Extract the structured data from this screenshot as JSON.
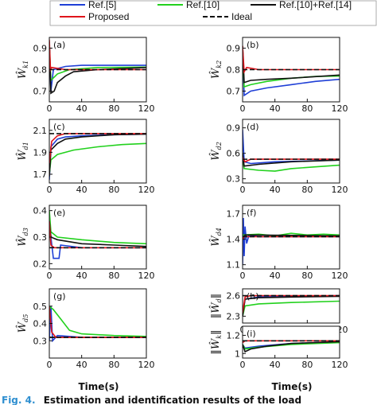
{
  "chart_data": {
    "type": "line",
    "legend": {
      "placement": "top",
      "entries": [
        {
          "key": "ref5",
          "label": "Ref.[5]",
          "color": "#1f3fd6",
          "dash": "solid"
        },
        {
          "key": "ref10",
          "label": "Ref.[10]",
          "color": "#22d11d",
          "dash": "solid"
        },
        {
          "key": "ref1014",
          "label": "Ref.[10]+Ref.[14]",
          "color": "#111111",
          "dash": "solid"
        },
        {
          "key": "proposed",
          "label": "Proposed",
          "color": "#e0141b",
          "dash": "solid"
        },
        {
          "key": "ideal",
          "label": "Ideal",
          "color": "#111111",
          "dash": "dashed"
        }
      ]
    },
    "xlabel": "Time(s)",
    "x_ticks": [
      "0",
      "40",
      "80",
      "120"
    ],
    "xlim": [
      0,
      120
    ],
    "panels": [
      {
        "tag": "(a)",
        "ylabel_main": "Ŵ",
        "ylabel_sub": "k1",
        "ylim": [
          0.65,
          0.95
        ],
        "yticks": [
          0.7,
          0.8,
          0.9
        ],
        "ytick_labels": [
          "0.7",
          "0.8",
          "0.9"
        ],
        "ideal": 0.8,
        "series": {
          "ref5": [
            [
              0,
              0.93
            ],
            [
              2,
              0.7
            ],
            [
              5,
              0.8
            ],
            [
              20,
              0.815
            ],
            [
              40,
              0.82
            ],
            [
              80,
              0.82
            ],
            [
              120,
              0.82
            ]
          ],
          "ref10": [
            [
              0,
              0.92
            ],
            [
              2,
              0.75
            ],
            [
              10,
              0.78
            ],
            [
              25,
              0.8
            ],
            [
              60,
              0.81
            ],
            [
              120,
              0.812
            ]
          ],
          "ref1014": [
            [
              0,
              0.93
            ],
            [
              2,
              0.69
            ],
            [
              6,
              0.7
            ],
            [
              10,
              0.74
            ],
            [
              20,
              0.77
            ],
            [
              30,
              0.79
            ],
            [
              60,
              0.8
            ],
            [
              120,
              0.81
            ]
          ],
          "proposed": [
            [
              0,
              0.94
            ],
            [
              1.5,
              0.8
            ],
            [
              3,
              0.81
            ],
            [
              20,
              0.8
            ],
            [
              120,
              0.8
            ]
          ]
        }
      },
      {
        "tag": "(b)",
        "ylabel_main": "Ŵ",
        "ylabel_sub": "k2",
        "ylim": [
          0.65,
          0.95
        ],
        "yticks": [
          0.7,
          0.8,
          0.9
        ],
        "ytick_labels": [
          "0.7",
          "0.8",
          "0.9"
        ],
        "ideal": 0.8,
        "series": {
          "ref5": [
            [
              0,
              0.9
            ],
            [
              2,
              0.68
            ],
            [
              10,
              0.7
            ],
            [
              30,
              0.715
            ],
            [
              60,
              0.73
            ],
            [
              90,
              0.745
            ],
            [
              120,
              0.755
            ]
          ],
          "ref10": [
            [
              0,
              0.9
            ],
            [
              2,
              0.72
            ],
            [
              10,
              0.73
            ],
            [
              30,
              0.745
            ],
            [
              60,
              0.76
            ],
            [
              90,
              0.768
            ],
            [
              120,
              0.77
            ]
          ],
          "ref1014": [
            [
              0,
              0.91
            ],
            [
              2,
              0.74
            ],
            [
              10,
              0.75
            ],
            [
              30,
              0.755
            ],
            [
              60,
              0.76
            ],
            [
              120,
              0.775
            ]
          ],
          "proposed": [
            [
              0,
              0.91
            ],
            [
              2,
              0.79
            ],
            [
              5,
              0.81
            ],
            [
              20,
              0.8
            ],
            [
              120,
              0.8
            ]
          ]
        }
      },
      {
        "tag": "(c)",
        "ylabel_main": "Ŵ",
        "ylabel_sub": "d1",
        "ylim": [
          1.62,
          2.2
        ],
        "yticks": [
          1.7,
          1.9,
          2.1
        ],
        "ytick_labels": [
          "1.7",
          "1.9",
          "2.1"
        ],
        "ideal": 2.07,
        "series": {
          "ref5": [
            [
              0,
              1.65
            ],
            [
              2,
              1.95
            ],
            [
              10,
              2.02
            ],
            [
              20,
              2.04
            ],
            [
              40,
              2.05
            ],
            [
              80,
              2.06
            ],
            [
              120,
              2.065
            ]
          ],
          "ref10": [
            [
              0,
              1.7
            ],
            [
              2,
              1.83
            ],
            [
              10,
              1.88
            ],
            [
              30,
              1.92
            ],
            [
              60,
              1.95
            ],
            [
              90,
              1.97
            ],
            [
              120,
              1.98
            ]
          ],
          "ref1014": [
            [
              0,
              1.68
            ],
            [
              2,
              1.92
            ],
            [
              10,
              1.98
            ],
            [
              20,
              2.02
            ],
            [
              40,
              2.04
            ],
            [
              80,
              2.06
            ],
            [
              120,
              2.065
            ]
          ],
          "proposed": [
            [
              0,
              1.8
            ],
            [
              3,
              2.0
            ],
            [
              10,
              2.05
            ],
            [
              20,
              2.07
            ],
            [
              120,
              2.07
            ]
          ]
        }
      },
      {
        "tag": "(d)",
        "ylabel_main": "Ŵ",
        "ylabel_sub": "d2",
        "ylim": [
          0.25,
          1.0
        ],
        "yticks": [
          0.3,
          0.6,
          0.9
        ],
        "ytick_labels": [
          "0.3",
          "0.6",
          "0.9"
        ],
        "ideal": 0.53,
        "series": {
          "ref5": [
            [
              0,
              0.88
            ],
            [
              2,
              0.5
            ],
            [
              10,
              0.48
            ],
            [
              40,
              0.5
            ],
            [
              80,
              0.51
            ],
            [
              120,
              0.52
            ]
          ],
          "ref10": [
            [
              0,
              0.55
            ],
            [
              2,
              0.42
            ],
            [
              20,
              0.4
            ],
            [
              40,
              0.39
            ],
            [
              60,
              0.42
            ],
            [
              90,
              0.44
            ],
            [
              120,
              0.46
            ]
          ],
          "ref1014": [
            [
              0,
              0.6
            ],
            [
              2,
              0.45
            ],
            [
              20,
              0.47
            ],
            [
              60,
              0.5
            ],
            [
              120,
              0.52
            ]
          ],
          "proposed": [
            [
              0,
              0.55
            ],
            [
              3,
              0.5
            ],
            [
              10,
              0.53
            ],
            [
              120,
              0.53
            ]
          ]
        }
      },
      {
        "tag": "(e)",
        "ylabel_main": "Ŵ",
        "ylabel_sub": "d3",
        "ylim": [
          0.18,
          0.42
        ],
        "yticks": [
          0.2,
          0.3,
          0.4
        ],
        "ytick_labels": [
          "0.2",
          "0.3",
          "0.4"
        ],
        "ideal": 0.26,
        "series": {
          "ref5": [
            [
              0,
              0.36
            ],
            [
              2,
              0.3
            ],
            [
              5,
              0.22
            ],
            [
              12,
              0.22
            ],
            [
              14,
              0.27
            ],
            [
              40,
              0.26
            ],
            [
              120,
              0.26
            ]
          ],
          "ref10": [
            [
              0,
              0.4
            ],
            [
              2,
              0.32
            ],
            [
              10,
              0.3
            ],
            [
              40,
              0.29
            ],
            [
              80,
              0.28
            ],
            [
              120,
              0.275
            ]
          ],
          "ref1014": [
            [
              0,
              0.36
            ],
            [
              2,
              0.3
            ],
            [
              10,
              0.29
            ],
            [
              40,
              0.275
            ],
            [
              80,
              0.27
            ],
            [
              120,
              0.265
            ]
          ],
          "proposed": [
            [
              0,
              0.36
            ],
            [
              2,
              0.27
            ],
            [
              6,
              0.26
            ],
            [
              120,
              0.26
            ]
          ]
        }
      },
      {
        "tag": "(f)",
        "ylabel_main": "Ŵ",
        "ylabel_sub": "d4",
        "ylim": [
          1.05,
          1.8
        ],
        "yticks": [
          1.1,
          1.4,
          1.7
        ],
        "ytick_labels": [
          "1.1",
          "1.4",
          "1.7"
        ],
        "ideal": 1.43,
        "series": {
          "ref5": [
            [
              0,
              1.1
            ],
            [
              1,
              1.65
            ],
            [
              2,
              1.2
            ],
            [
              3,
              1.55
            ],
            [
              5,
              1.35
            ],
            [
              8,
              1.45
            ],
            [
              20,
              1.43
            ],
            [
              120,
              1.43
            ]
          ],
          "ref10": [
            [
              0,
              1.45
            ],
            [
              20,
              1.46
            ],
            [
              40,
              1.44
            ],
            [
              60,
              1.47
            ],
            [
              80,
              1.45
            ],
            [
              100,
              1.46
            ],
            [
              120,
              1.45
            ]
          ],
          "ref1014": [
            [
              0,
              1.4
            ],
            [
              3,
              1.45
            ],
            [
              120,
              1.44
            ]
          ],
          "proposed": [
            [
              0,
              1.4
            ],
            [
              2,
              1.43
            ],
            [
              120,
              1.43
            ]
          ]
        }
      },
      {
        "tag": "(g)",
        "ylabel_main": "Ŵ",
        "ylabel_sub": "d5",
        "ylim": [
          0.2,
          0.6
        ],
        "yticks": [
          0.3,
          0.4,
          0.5
        ],
        "ytick_labels": [
          "0.3",
          "0.4",
          "0.5"
        ],
        "ideal": 0.32,
        "series": {
          "ref5": [
            [
              0,
              0.3
            ],
            [
              2,
              0.5
            ],
            [
              4,
              0.3
            ],
            [
              10,
              0.33
            ],
            [
              40,
              0.32
            ],
            [
              120,
              0.32
            ]
          ],
          "ref10": [
            [
              0,
              0.5
            ],
            [
              5,
              0.48
            ],
            [
              15,
              0.42
            ],
            [
              25,
              0.36
            ],
            [
              40,
              0.34
            ],
            [
              80,
              0.33
            ],
            [
              120,
              0.325
            ]
          ],
          "ref1014": [
            [
              0,
              0.32
            ],
            [
              10,
              0.32
            ],
            [
              120,
              0.32
            ]
          ],
          "proposed": [
            [
              0,
              0.5
            ],
            [
              3,
              0.35
            ],
            [
              8,
              0.32
            ],
            [
              120,
              0.32
            ]
          ]
        }
      },
      {
        "tag": "(h)",
        "ylabel_main": "‖Ŵ",
        "ylabel_sub": "d",
        "ylim": [
          2.2,
          2.7
        ],
        "yticks": [
          2.3,
          2.6
        ],
        "ytick_labels": [
          "2.3",
          "2.6"
        ],
        "ideal": 2.6,
        "series": {
          "ref5": [
            [
              0,
              2.3
            ],
            [
              3,
              2.55
            ],
            [
              20,
              2.58
            ],
            [
              60,
              2.59
            ],
            [
              120,
              2.6
            ]
          ],
          "ref10": [
            [
              0,
              2.3
            ],
            [
              3,
              2.45
            ],
            [
              20,
              2.48
            ],
            [
              60,
              2.5
            ],
            [
              120,
              2.52
            ]
          ],
          "ref1014": [
            [
              0,
              2.3
            ],
            [
              3,
              2.55
            ],
            [
              20,
              2.57
            ],
            [
              60,
              2.58
            ],
            [
              120,
              2.59
            ]
          ],
          "proposed": [
            [
              0,
              2.35
            ],
            [
              3,
              2.58
            ],
            [
              10,
              2.6
            ],
            [
              120,
              2.6
            ]
          ]
        }
      },
      {
        "tag": "(i)",
        "ylabel_main": "‖Ŵ",
        "ylabel_sub": "k",
        "ylim": [
          0.95,
          1.3
        ],
        "yticks": [
          1.0,
          1.2
        ],
        "ytick_labels": [
          "1",
          "1.2"
        ],
        "ideal": 1.14,
        "series": {
          "ref5": [
            [
              0,
              1.1
            ],
            [
              3,
              1.06
            ],
            [
              20,
              1.08
            ],
            [
              60,
              1.11
            ],
            [
              120,
              1.13
            ]
          ],
          "ref10": [
            [
              0,
              1.1
            ],
            [
              3,
              1.05
            ],
            [
              20,
              1.07
            ],
            [
              60,
              1.1
            ],
            [
              120,
              1.12
            ]
          ],
          "ref1014": [
            [
              0,
              1.1
            ],
            [
              3,
              1.02
            ],
            [
              10,
              1.05
            ],
            [
              30,
              1.08
            ],
            [
              60,
              1.11
            ],
            [
              120,
              1.13
            ]
          ],
          "proposed": [
            [
              0,
              1.12
            ],
            [
              3,
              1.14
            ],
            [
              120,
              1.14
            ]
          ]
        }
      }
    ]
  },
  "caption": {
    "prefix": "Fig. 4.",
    "text": "Estimation and identification results of the load"
  }
}
